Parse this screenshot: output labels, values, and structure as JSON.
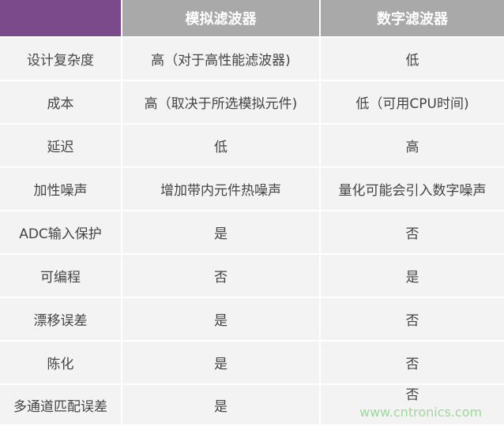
{
  "header": {
    "corner": "",
    "col_analog": "模拟滤波器",
    "col_digital": "数字滤波器"
  },
  "rows": [
    {
      "label": "设计复杂度",
      "analog": "高（对于高性能滤波器)",
      "digital": "低"
    },
    {
      "label": "成本",
      "analog": "高（取决于所选模拟元件)",
      "digital": "低（可用CPU时间)"
    },
    {
      "label": "延迟",
      "analog": "低",
      "digital": "高"
    },
    {
      "label": "加性噪声",
      "analog": "增加带内元件热噪声",
      "digital": "量化可能会引入数字噪声"
    },
    {
      "label": "ADC输入保护",
      "analog": "是",
      "digital": "否"
    },
    {
      "label": "可编程",
      "analog": "否",
      "digital": "是"
    },
    {
      "label": "漂移误差",
      "analog": "是",
      "digital": "否"
    },
    {
      "label": "陈化",
      "analog": "是",
      "digital": "否"
    },
    {
      "label": "多通道匹配误差",
      "analog": "是",
      "digital": "否"
    }
  ],
  "watermark": "www.cntronics.com",
  "colors": {
    "corner": "#7b4a8a",
    "header": "#a9a9a9",
    "cell": "#f3f3f3"
  }
}
